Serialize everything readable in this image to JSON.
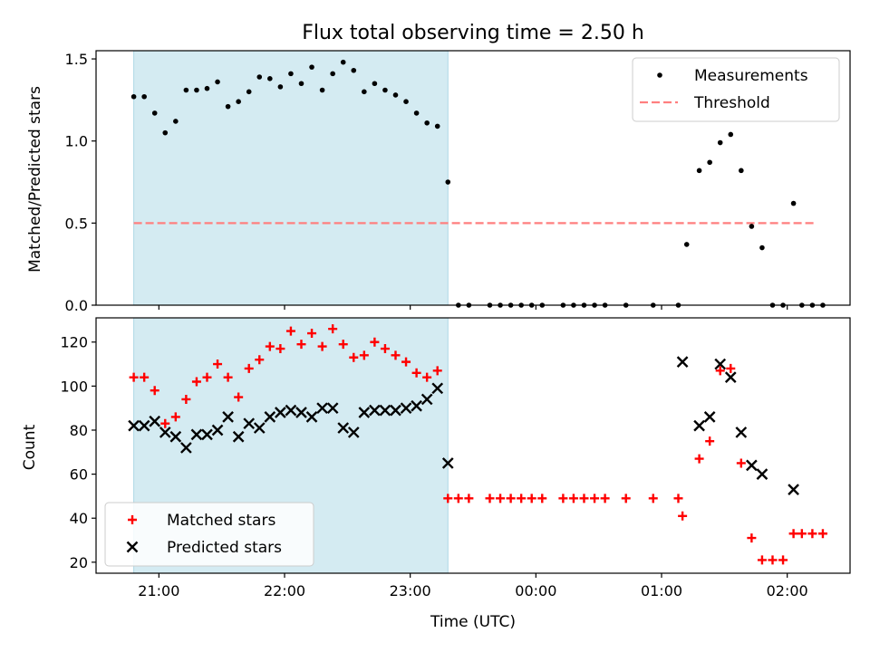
{
  "title": "Flux total observing time = 2.50 h",
  "xlabel": "Time (UTC)",
  "chart_data": [
    {
      "type": "scatter",
      "ylabel": "Matched/Predicted stars",
      "xlim": [
        "20:30",
        "02:30"
      ],
      "ylim": [
        0,
        1.55
      ],
      "yticks": [
        0.0,
        0.5,
        1.0,
        1.5
      ],
      "ytick_labels": [
        "0.0",
        "0.5",
        "1.0",
        "1.5"
      ],
      "shaded_interval": [
        "20:48",
        "23:18"
      ],
      "shade_color": "#add8e6",
      "threshold": {
        "name": "Threshold",
        "value": 0.5,
        "x_range": [
          "20:48",
          "02:14"
        ],
        "color": "#ff7f7f"
      },
      "legend": {
        "placement": "upper right",
        "entries": [
          "Measurements",
          "Threshold"
        ]
      },
      "series": [
        {
          "name": "Measurements",
          "marker": "dot",
          "color": "#000000",
          "points": [
            [
              "20:48",
              1.27
            ],
            [
              "20:53",
              1.27
            ],
            [
              "20:58",
              1.17
            ],
            [
              "21:03",
              1.05
            ],
            [
              "21:08",
              1.12
            ],
            [
              "21:13",
              1.31
            ],
            [
              "21:18",
              1.31
            ],
            [
              "21:23",
              1.32
            ],
            [
              "21:28",
              1.36
            ],
            [
              "21:33",
              1.21
            ],
            [
              "21:38",
              1.24
            ],
            [
              "21:43",
              1.3
            ],
            [
              "21:48",
              1.39
            ],
            [
              "21:53",
              1.38
            ],
            [
              "21:58",
              1.33
            ],
            [
              "22:03",
              1.41
            ],
            [
              "22:08",
              1.35
            ],
            [
              "22:13",
              1.45
            ],
            [
              "22:18",
              1.31
            ],
            [
              "22:23",
              1.41
            ],
            [
              "22:28",
              1.48
            ],
            [
              "22:33",
              1.43
            ],
            [
              "22:38",
              1.3
            ],
            [
              "22:43",
              1.35
            ],
            [
              "22:48",
              1.31
            ],
            [
              "22:53",
              1.28
            ],
            [
              "22:58",
              1.24
            ],
            [
              "23:03",
              1.17
            ],
            [
              "23:08",
              1.11
            ],
            [
              "23:13",
              1.09
            ],
            [
              "23:18",
              0.75
            ],
            [
              "23:23",
              0.0
            ],
            [
              "23:28",
              0.0
            ],
            [
              "23:38",
              0.0
            ],
            [
              "23:43",
              0.0
            ],
            [
              "23:48",
              0.0
            ],
            [
              "23:53",
              0.0
            ],
            [
              "23:58",
              0.0
            ],
            [
              "00:03",
              0.0
            ],
            [
              "00:13",
              0.0
            ],
            [
              "00:18",
              0.0
            ],
            [
              "00:23",
              0.0
            ],
            [
              "00:28",
              0.0
            ],
            [
              "00:33",
              0.0
            ],
            [
              "00:43",
              0.0
            ],
            [
              "00:56",
              0.0
            ],
            [
              "01:08",
              0.0
            ],
            [
              "01:12",
              0.37
            ],
            [
              "01:18",
              0.82
            ],
            [
              "01:23",
              0.87
            ],
            [
              "01:28",
              0.99
            ],
            [
              "01:33",
              1.04
            ],
            [
              "01:38",
              0.82
            ],
            [
              "01:43",
              0.48
            ],
            [
              "01:48",
              0.35
            ],
            [
              "01:53",
              0.0
            ],
            [
              "01:58",
              0.0
            ],
            [
              "02:03",
              0.62
            ],
            [
              "02:07",
              0.0
            ],
            [
              "02:12",
              0.0
            ],
            [
              "02:17",
              0.0
            ]
          ]
        }
      ]
    },
    {
      "type": "scatter",
      "ylabel": "Count",
      "xlim": [
        "20:30",
        "02:30"
      ],
      "ylim": [
        15,
        131
      ],
      "yticks": [
        20,
        40,
        60,
        80,
        100,
        120
      ],
      "ytick_labels": [
        "20",
        "40",
        "60",
        "80",
        "100",
        "120"
      ],
      "xticks": [
        "21:00",
        "22:00",
        "23:00",
        "00:00",
        "01:00",
        "02:00"
      ],
      "xtick_labels": [
        "21:00",
        "22:00",
        "23:00",
        "00:00",
        "01:00",
        "02:00"
      ],
      "shaded_interval": [
        "20:48",
        "23:18"
      ],
      "shade_color": "#add8e6",
      "legend": {
        "placement": "lower left",
        "entries": [
          "Matched stars",
          "Predicted stars"
        ]
      },
      "series": [
        {
          "name": "Matched stars",
          "marker": "plus",
          "color": "#ff0000",
          "points": [
            [
              "20:48",
              104
            ],
            [
              "20:53",
              104
            ],
            [
              "20:58",
              98
            ],
            [
              "21:03",
              83
            ],
            [
              "21:08",
              86
            ],
            [
              "21:13",
              94
            ],
            [
              "21:18",
              102
            ],
            [
              "21:23",
              104
            ],
            [
              "21:28",
              110
            ],
            [
              "21:33",
              104
            ],
            [
              "21:38",
              95
            ],
            [
              "21:43",
              108
            ],
            [
              "21:48",
              112
            ],
            [
              "21:53",
              118
            ],
            [
              "21:58",
              117
            ],
            [
              "22:03",
              125
            ],
            [
              "22:08",
              119
            ],
            [
              "22:13",
              124
            ],
            [
              "22:18",
              118
            ],
            [
              "22:23",
              126
            ],
            [
              "22:28",
              119
            ],
            [
              "22:33",
              113
            ],
            [
              "22:38",
              114
            ],
            [
              "22:43",
              120
            ],
            [
              "22:48",
              117
            ],
            [
              "22:53",
              114
            ],
            [
              "22:58",
              111
            ],
            [
              "23:03",
              106
            ],
            [
              "23:08",
              104
            ],
            [
              "23:13",
              107
            ],
            [
              "23:18",
              49
            ],
            [
              "23:23",
              49
            ],
            [
              "23:28",
              49
            ],
            [
              "23:38",
              49
            ],
            [
              "23:43",
              49
            ],
            [
              "23:48",
              49
            ],
            [
              "23:53",
              49
            ],
            [
              "23:58",
              49
            ],
            [
              "00:03",
              49
            ],
            [
              "00:13",
              49
            ],
            [
              "00:18",
              49
            ],
            [
              "00:23",
              49
            ],
            [
              "00:28",
              49
            ],
            [
              "00:33",
              49
            ],
            [
              "00:43",
              49
            ],
            [
              "00:56",
              49
            ],
            [
              "01:08",
              49
            ],
            [
              "01:10",
              41
            ],
            [
              "01:18",
              67
            ],
            [
              "01:23",
              75
            ],
            [
              "01:28",
              107
            ],
            [
              "01:33",
              108
            ],
            [
              "01:38",
              65
            ],
            [
              "01:43",
              31
            ],
            [
              "01:48",
              21
            ],
            [
              "01:53",
              21
            ],
            [
              "01:58",
              21
            ],
            [
              "02:03",
              33
            ],
            [
              "02:07",
              33
            ],
            [
              "02:12",
              33
            ],
            [
              "02:17",
              33
            ]
          ]
        },
        {
          "name": "Predicted stars",
          "marker": "x",
          "color": "#000000",
          "points": [
            [
              "20:48",
              82
            ],
            [
              "20:53",
              82
            ],
            [
              "20:58",
              84
            ],
            [
              "21:03",
              79
            ],
            [
              "21:08",
              77
            ],
            [
              "21:13",
              72
            ],
            [
              "21:18",
              78
            ],
            [
              "21:23",
              78
            ],
            [
              "21:28",
              80
            ],
            [
              "21:33",
              86
            ],
            [
              "21:38",
              77
            ],
            [
              "21:43",
              83
            ],
            [
              "21:48",
              81
            ],
            [
              "21:53",
              86
            ],
            [
              "21:58",
              88
            ],
            [
              "22:03",
              89
            ],
            [
              "22:08",
              88
            ],
            [
              "22:13",
              86
            ],
            [
              "22:18",
              90
            ],
            [
              "22:23",
              90
            ],
            [
              "22:28",
              81
            ],
            [
              "22:33",
              79
            ],
            [
              "22:38",
              88
            ],
            [
              "22:43",
              89
            ],
            [
              "22:48",
              89
            ],
            [
              "22:53",
              89
            ],
            [
              "22:58",
              90
            ],
            [
              "23:03",
              91
            ],
            [
              "23:08",
              94
            ],
            [
              "23:13",
              99
            ],
            [
              "23:18",
              65
            ],
            [
              "01:10",
              111
            ],
            [
              "01:18",
              82
            ],
            [
              "01:23",
              86
            ],
            [
              "01:28",
              110
            ],
            [
              "01:33",
              104
            ],
            [
              "01:38",
              79
            ],
            [
              "01:43",
              64
            ],
            [
              "01:48",
              60
            ],
            [
              "02:03",
              53
            ]
          ]
        }
      ]
    }
  ]
}
